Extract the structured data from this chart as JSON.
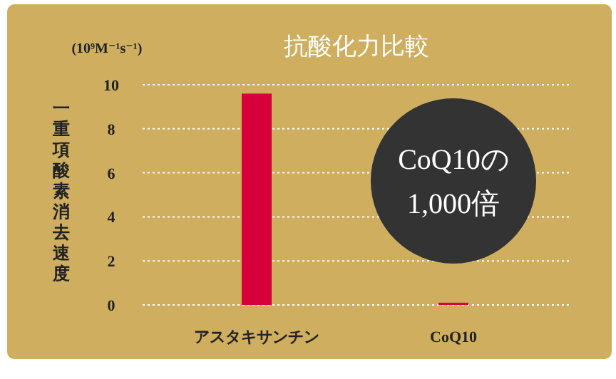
{
  "chart_data": {
    "type": "bar",
    "title": "抗酸化力比較",
    "ylabel": "一重項酸素消去速度",
    "categories": [
      "アスタキサンチン",
      "CoQ10"
    ],
    "values": [
      9.6,
      0.1
    ],
    "color": "#d6003a",
    "ylim": [
      0,
      10
    ],
    "yticks": [
      0,
      2,
      4,
      6,
      8,
      10
    ],
    "grid": "y",
    "annotations": [
      "(10⁹M⁻¹s⁻¹)",
      "CoQ10の",
      "1,000倍"
    ]
  }
}
